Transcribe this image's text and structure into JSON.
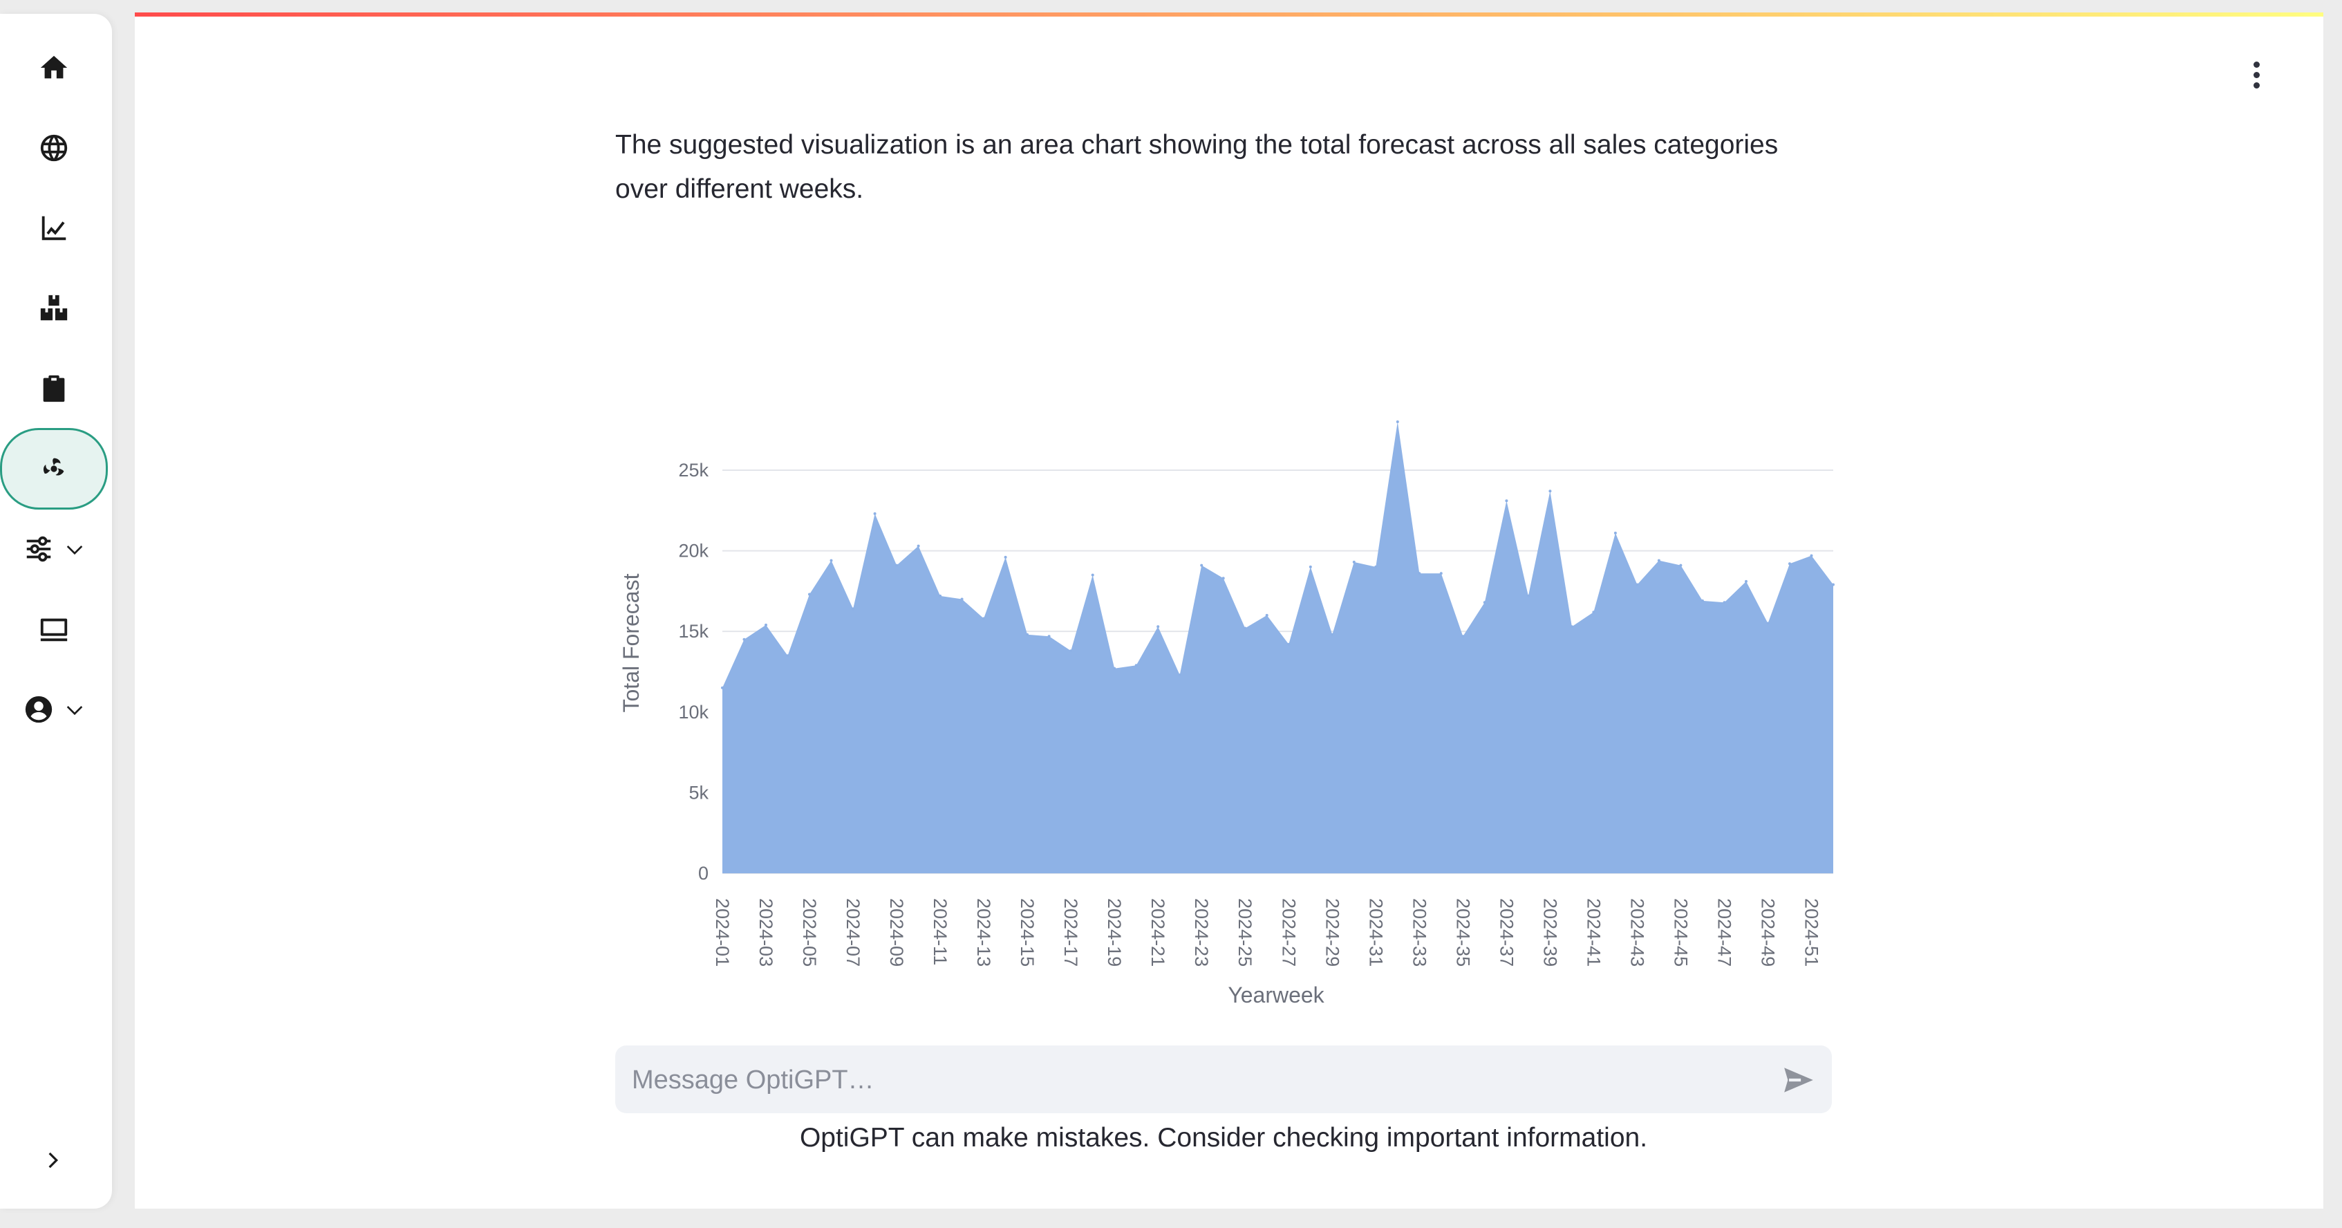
{
  "sidebar": {
    "items": [
      {
        "name": "home-icon"
      },
      {
        "name": "globe-icon"
      },
      {
        "name": "line-chart-icon"
      },
      {
        "name": "boxes-icon"
      },
      {
        "name": "clipboard-icon"
      },
      {
        "name": "assistant-logo-icon",
        "active": true
      },
      {
        "name": "settings-sliders-icon",
        "expandable": true
      },
      {
        "name": "monitor-icon"
      },
      {
        "name": "user-account-icon",
        "expandable": true
      }
    ],
    "expand_icon": "chevron-right-icon"
  },
  "main": {
    "intro_text": "The suggested visualization is an area chart showing the total forecast across all sales categories over different weeks.",
    "accent_gradient": [
      "#ff4b4b",
      "#fffd80"
    ]
  },
  "chart_data": {
    "type": "area",
    "xlabel": "Yearweek",
    "ylabel": "Total Forecast",
    "ylim": [
      0,
      28000
    ],
    "yticks": [
      0,
      5000,
      10000,
      15000,
      20000,
      25000
    ],
    "ytick_labels": [
      "0",
      "5k",
      "10k",
      "15k",
      "20k",
      "25k"
    ],
    "x_tick_labels": [
      "2024-01",
      "2024-03",
      "2024-05",
      "2024-07",
      "2024-09",
      "2024-11",
      "2024-13",
      "2024-15",
      "2024-17",
      "2024-19",
      "2024-21",
      "2024-23",
      "2024-25",
      "2024-27",
      "2024-29",
      "2024-31",
      "2024-33",
      "2024-35",
      "2024-37",
      "2024-39",
      "2024-41",
      "2024-43",
      "2024-45",
      "2024-47",
      "2024-49",
      "2024-51"
    ],
    "color": "#8cb0e5",
    "grid": true,
    "x": [
      "2024-01",
      "2024-02",
      "2024-03",
      "2024-04",
      "2024-05",
      "2024-06",
      "2024-07",
      "2024-08",
      "2024-09",
      "2024-10",
      "2024-11",
      "2024-12",
      "2024-13",
      "2024-14",
      "2024-15",
      "2024-16",
      "2024-17",
      "2024-18",
      "2024-19",
      "2024-20",
      "2024-21",
      "2024-22",
      "2024-23",
      "2024-24",
      "2024-25",
      "2024-26",
      "2024-27",
      "2024-28",
      "2024-29",
      "2024-30",
      "2024-31",
      "2024-32",
      "2024-33",
      "2024-34",
      "2024-35",
      "2024-36",
      "2024-37",
      "2024-38",
      "2024-39",
      "2024-40",
      "2024-41",
      "2024-42",
      "2024-43",
      "2024-44",
      "2024-45",
      "2024-46",
      "2024-47",
      "2024-48",
      "2024-49",
      "2024-50",
      "2024-51",
      "2024-52"
    ],
    "values": [
      11500,
      14500,
      15400,
      13500,
      17300,
      19400,
      16400,
      22300,
      19100,
      20300,
      17200,
      17000,
      15800,
      19600,
      14800,
      14700,
      13800,
      18500,
      12700,
      12900,
      15300,
      12300,
      19100,
      18300,
      15200,
      16000,
      14200,
      19000,
      14800,
      19300,
      19000,
      28000,
      18600,
      18600,
      14700,
      16800,
      23100,
      17200,
      23700,
      15300,
      16200,
      21100,
      17900,
      19400,
      19100,
      16900,
      16800,
      18100,
      15500,
      19200,
      19700,
      17900
    ]
  },
  "chat": {
    "placeholder": "Message OptiGPT…",
    "send_icon": "send-icon",
    "disclaimer": "OptiGPT can make mistakes. Consider checking important information."
  }
}
